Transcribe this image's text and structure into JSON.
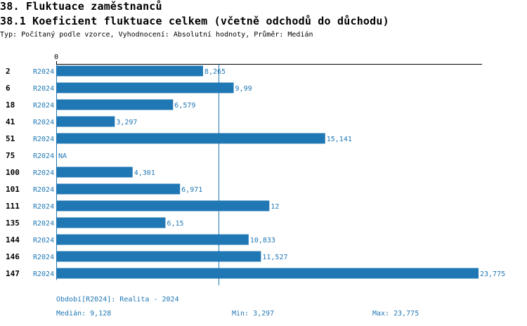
{
  "header": {
    "title": "38. Fluktuace zaměstnanců",
    "subtitle": "38.1 Koeficient fluktuace celkem (včetně odchodů do důchodu)",
    "meta": "Typ: Počítaný podle vzorce, Vyhodnocení: Absolutní hodnoty, Průměr: Medián"
  },
  "chart_data": {
    "type": "bar",
    "orientation": "horizontal",
    "x_tick_labels": [
      "0"
    ],
    "xlim": [
      0,
      23.775
    ],
    "bar_color": "#1f77b4",
    "reference_line": {
      "kind": "median",
      "value": 9.128
    },
    "rows": [
      {
        "id": "2",
        "period": "R2024",
        "value": 8.265,
        "label": "8,265"
      },
      {
        "id": "6",
        "period": "R2024",
        "value": 9.99,
        "label": "9,99"
      },
      {
        "id": "18",
        "period": "R2024",
        "value": 6.579,
        "label": "6,579"
      },
      {
        "id": "41",
        "period": "R2024",
        "value": 3.297,
        "label": "3,297"
      },
      {
        "id": "51",
        "period": "R2024",
        "value": 15.141,
        "label": "15,141"
      },
      {
        "id": "75",
        "period": "R2024",
        "value": null,
        "label": "NA"
      },
      {
        "id": "100",
        "period": "R2024",
        "value": 4.301,
        "label": "4,301"
      },
      {
        "id": "101",
        "period": "R2024",
        "value": 6.971,
        "label": "6,971"
      },
      {
        "id": "111",
        "period": "R2024",
        "value": 12,
        "label": "12"
      },
      {
        "id": "135",
        "period": "R2024",
        "value": 6.15,
        "label": "6,15"
      },
      {
        "id": "144",
        "period": "R2024",
        "value": 10.833,
        "label": "10,833"
      },
      {
        "id": "146",
        "period": "R2024",
        "value": 11.527,
        "label": "11,527"
      },
      {
        "id": "147",
        "period": "R2024",
        "value": 23.775,
        "label": "23,775"
      }
    ]
  },
  "footer": {
    "period_note": "Období[R2024]: Realita - 2024",
    "median": "Medián: 9,128",
    "min": "Min: 3,297",
    "max": "Max: 23,775"
  }
}
